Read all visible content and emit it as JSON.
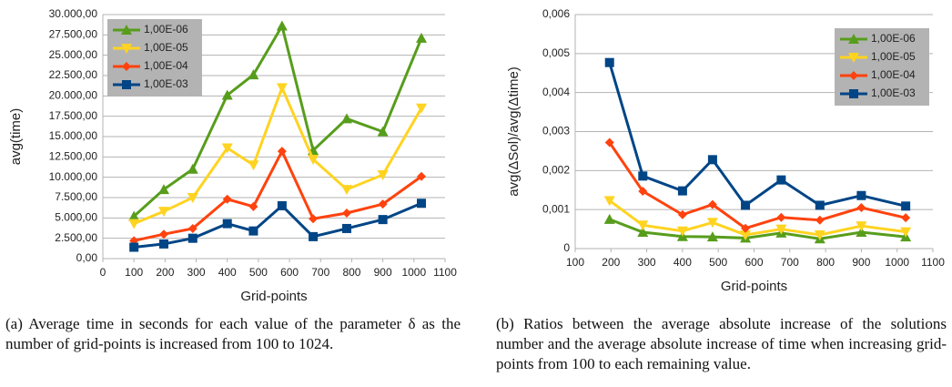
{
  "chart_data": [
    {
      "type": "line",
      "y_label": "avg(time)",
      "x_label": "Grid-points",
      "caption": "(a) Average time in seconds for each value of the parameter δ as the number of grid-points is increased from 100 to 1024.",
      "x": [
        100,
        196,
        289,
        400,
        484,
        576,
        676,
        784,
        900,
        1024
      ],
      "xlim": [
        0,
        1100
      ],
      "xticks": [
        0,
        100,
        200,
        300,
        400,
        500,
        600,
        700,
        800,
        900,
        1000,
        1100
      ],
      "ylim": [
        0,
        30000
      ],
      "yticks": [
        {
          "value": 0,
          "label": "0,00"
        },
        {
          "value": 2500,
          "label": "2.500,00"
        },
        {
          "value": 5000,
          "label": "5.000,00"
        },
        {
          "value": 7500,
          "label": "7.500,00"
        },
        {
          "value": 10000,
          "label": "10.000,00"
        },
        {
          "value": 12500,
          "label": "12.500,00"
        },
        {
          "value": 15000,
          "label": "15.000,00"
        },
        {
          "value": 17500,
          "label": "17.500,00"
        },
        {
          "value": 20000,
          "label": "20.000,00"
        },
        {
          "value": 22500,
          "label": "22.500,00"
        },
        {
          "value": 25000,
          "label": "25.000,00"
        },
        {
          "value": 27500,
          "label": "27.500,00"
        },
        {
          "value": 30000,
          "label": "30.000,00"
        }
      ],
      "grid": true,
      "legend": "top-left",
      "series": [
        {
          "name": "1,00E-06",
          "color": "#579d1c",
          "marker": "triangle-up",
          "values": [
            5200,
            8500,
            11000,
            20100,
            22600,
            28600,
            13300,
            17200,
            15600,
            27100
          ]
        },
        {
          "name": "1,00E-05",
          "color": "#ffd320",
          "marker": "triangle-down",
          "values": [
            4300,
            5800,
            7500,
            13600,
            11500,
            21000,
            12200,
            8500,
            10300,
            18500
          ]
        },
        {
          "name": "1,00E-04",
          "color": "#ff420e",
          "marker": "diamond",
          "values": [
            2200,
            3000,
            3700,
            7300,
            6400,
            13200,
            4900,
            5600,
            6700,
            10100
          ]
        },
        {
          "name": "1,00E-03",
          "color": "#004586",
          "marker": "square",
          "values": [
            1400,
            1800,
            2500,
            4300,
            3400,
            6500,
            2700,
            3700,
            4800,
            6800
          ]
        }
      ]
    },
    {
      "type": "line",
      "y_label": "avg(ΔSol)/avg(Δtime)",
      "x_label": "Grid-points",
      "caption": "(b) Ratios between the average absolute increase of the solutions number and the average absolute increase of time when increasing grid-points from 100 to each remaining value.",
      "x": [
        196,
        289,
        400,
        484,
        576,
        676,
        784,
        900,
        1024
      ],
      "xlim": [
        100,
        1100
      ],
      "xticks": [
        100,
        200,
        300,
        400,
        500,
        600,
        700,
        800,
        900,
        1000,
        1100
      ],
      "ylim": [
        0,
        0.006
      ],
      "yticks": [
        0,
        {
          "value": 0.001,
          "label": "0,001"
        },
        {
          "value": 0.002,
          "label": "0,002"
        },
        {
          "value": 0.003,
          "label": "0,003"
        },
        {
          "value": 0.004,
          "label": "0,004"
        },
        {
          "value": 0.005,
          "label": "0,005"
        },
        {
          "value": 0.006,
          "label": "0,006"
        }
      ],
      "grid": true,
      "legend": "top-right",
      "series": [
        {
          "name": "1,00E-06",
          "color": "#579d1c",
          "marker": "triangle-up",
          "values": [
            0.00075,
            0.00042,
            0.00031,
            0.0003,
            0.00027,
            0.0004,
            0.00025,
            0.00042,
            0.0003
          ]
        },
        {
          "name": "1,00E-05",
          "color": "#ffd320",
          "marker": "triangle-down",
          "values": [
            0.00123,
            0.0006,
            0.00045,
            0.00067,
            0.00035,
            0.0005,
            0.00035,
            0.00058,
            0.00043
          ]
        },
        {
          "name": "1,00E-04",
          "color": "#ff420e",
          "marker": "diamond",
          "values": [
            0.00272,
            0.00147,
            0.00087,
            0.00113,
            0.00052,
            0.0008,
            0.00073,
            0.00105,
            0.00079
          ]
        },
        {
          "name": "1,00E-03",
          "color": "#004586",
          "marker": "square",
          "values": [
            0.00477,
            0.00186,
            0.00148,
            0.00228,
            0.00111,
            0.00176,
            0.00111,
            0.00136,
            0.00109
          ]
        }
      ]
    }
  ]
}
